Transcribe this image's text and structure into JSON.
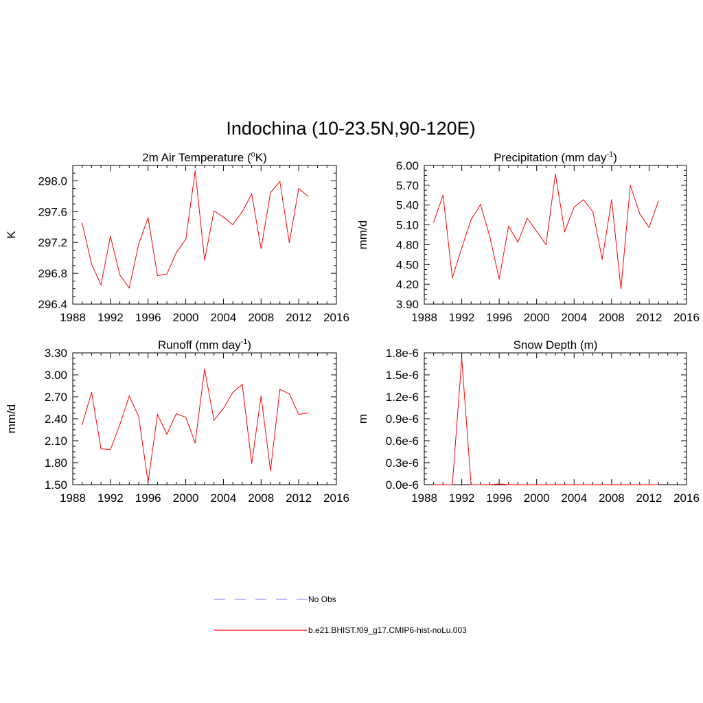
{
  "title": "Indochina (10-23.5N,90-120E)",
  "legend": [
    {
      "label": "No Obs",
      "color": "#9999ff",
      "dash": true
    },
    {
      "label": "b.e21.BHIST.f09_g17.CMIP6-hist-noLu.003",
      "color": "#ff0000",
      "dash": false
    }
  ],
  "chart_data": [
    {
      "type": "line",
      "title": "2m Air Temperature (°K)",
      "title_parts": [
        "2m Air Temperature (",
        "o",
        "K)"
      ],
      "ylabel": "K",
      "xlim": [
        1988,
        2016
      ],
      "ylim": [
        296.4,
        298.2
      ],
      "xticks": [
        1988,
        1992,
        1996,
        2000,
        2004,
        2008,
        2012,
        2016
      ],
      "yticks": [
        296.4,
        296.8,
        297.2,
        297.6,
        298.0
      ],
      "ytick_labels": [
        "296.4",
        "296.8",
        "297.2",
        "297.6",
        "298.0"
      ],
      "series": [
        {
          "color": "#ff0000",
          "x": [
            1989,
            1990,
            1991,
            1992,
            1993,
            1994,
            1995,
            1996,
            1997,
            1998,
            1999,
            2000,
            2001,
            2002,
            2003,
            2004,
            2005,
            2006,
            2007,
            2008,
            2009,
            2010,
            2011,
            2012,
            2013
          ],
          "values": [
            297.45,
            296.92,
            296.65,
            297.28,
            296.78,
            296.61,
            297.18,
            297.52,
            296.77,
            296.79,
            297.07,
            297.24,
            298.13,
            296.97,
            297.61,
            297.53,
            297.43,
            297.6,
            297.83,
            297.12,
            297.85,
            297.99,
            297.2,
            297.9,
            297.8
          ]
        }
      ]
    },
    {
      "type": "line",
      "title": "Precipitation (mm day-1)",
      "title_parts": [
        "Precipitation (mm day",
        "-1",
        ")"
      ],
      "ylabel": "mm/d",
      "xlim": [
        1988,
        2016
      ],
      "ylim": [
        3.9,
        6.0
      ],
      "xticks": [
        1988,
        1992,
        1996,
        2000,
        2004,
        2008,
        2012,
        2016
      ],
      "yticks": [
        3.9,
        4.2,
        4.5,
        4.8,
        5.1,
        5.4,
        5.7,
        6.0
      ],
      "ytick_labels": [
        "3.90",
        "4.20",
        "4.50",
        "4.80",
        "5.10",
        "5.40",
        "5.70",
        "6.00"
      ],
      "series": [
        {
          "color": "#ff0000",
          "x": [
            1989,
            1990,
            1991,
            1992,
            1993,
            1994,
            1995,
            1996,
            1997,
            1998,
            1999,
            2000,
            2001,
            2002,
            2003,
            2004,
            2005,
            2006,
            2007,
            2008,
            2009,
            2010,
            2011,
            2012,
            2013
          ],
          "values": [
            5.14,
            5.55,
            4.3,
            4.75,
            5.18,
            5.41,
            4.92,
            4.28,
            5.08,
            4.84,
            5.2,
            5.0,
            4.8,
            5.87,
            5.0,
            5.37,
            5.48,
            5.3,
            4.58,
            5.48,
            4.13,
            5.7,
            5.27,
            5.06,
            5.46
          ]
        }
      ]
    },
    {
      "type": "line",
      "title": "Runoff (mm day-1)",
      "title_parts": [
        "Runoff (mm day",
        "-1",
        ")"
      ],
      "ylabel": "mm/d",
      "xlim": [
        1988,
        2016
      ],
      "ylim": [
        1.5,
        3.3
      ],
      "xticks": [
        1988,
        1992,
        1996,
        2000,
        2004,
        2008,
        2012,
        2016
      ],
      "yticks": [
        1.5,
        1.8,
        2.1,
        2.4,
        2.7,
        3.0,
        3.3
      ],
      "ytick_labels": [
        "1.50",
        "1.80",
        "2.10",
        "2.40",
        "2.70",
        "3.00",
        "3.30"
      ],
      "series": [
        {
          "color": "#ff0000",
          "x": [
            1989,
            1990,
            1991,
            1992,
            1993,
            1994,
            1995,
            1996,
            1997,
            1998,
            1999,
            2000,
            2001,
            2002,
            2003,
            2004,
            2005,
            2006,
            2007,
            2008,
            2009,
            2010,
            2011,
            2012,
            2013
          ],
          "values": [
            2.32,
            2.76,
            1.99,
            1.98,
            2.32,
            2.71,
            2.43,
            1.53,
            2.46,
            2.19,
            2.47,
            2.42,
            2.07,
            3.08,
            2.38,
            2.54,
            2.76,
            2.87,
            1.79,
            2.71,
            1.69,
            2.8,
            2.74,
            2.46,
            2.48
          ]
        }
      ]
    },
    {
      "type": "line",
      "title": "Snow Depth (m)",
      "title_parts": [
        "Snow Depth (m)",
        "",
        ""
      ],
      "ylabel": "m",
      "xlim": [
        1988,
        2016
      ],
      "ylim": [
        0,
        1.8e-06
      ],
      "xticks": [
        1988,
        1992,
        1996,
        2000,
        2004,
        2008,
        2012,
        2016
      ],
      "yticks": [
        0,
        3e-07,
        6e-07,
        9e-07,
        1.2e-06,
        1.5e-06,
        1.8e-06
      ],
      "ytick_labels": [
        "0.0e-6",
        "0.3e-6",
        "0.6e-6",
        "0.9e-6",
        "1.2e-6",
        "1.5e-6",
        "1.8e-6"
      ],
      "series": [
        {
          "color": "#ff0000",
          "x": [
            1989,
            1990,
            1991,
            1992,
            1993,
            1994,
            1995,
            1996,
            1997,
            1998,
            1999,
            2000,
            2001,
            2002,
            2003,
            2004,
            2005,
            2006,
            2007,
            2008,
            2009,
            2010,
            2011,
            2012,
            2013
          ],
          "values": [
            0,
            0,
            0,
            1.72e-06,
            0,
            0,
            0,
            1e-08,
            0,
            0,
            0,
            0,
            0,
            0,
            0,
            0,
            0,
            0,
            0,
            0,
            0,
            0,
            0,
            0,
            0
          ]
        }
      ]
    }
  ]
}
